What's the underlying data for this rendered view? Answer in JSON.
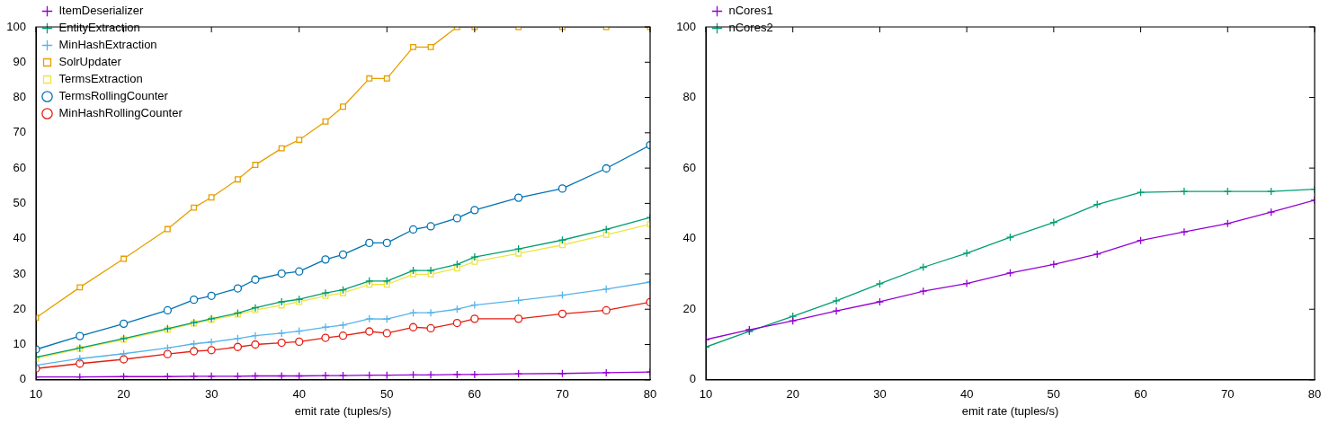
{
  "chart_data": [
    {
      "type": "line",
      "xlabel": "emit rate (tuples/s)",
      "x": [
        10,
        15,
        20,
        25,
        28,
        30,
        33,
        35,
        38,
        40,
        43,
        45,
        48,
        50,
        53,
        55,
        58,
        60,
        65,
        70,
        75,
        80
      ],
      "xlim": [
        10,
        80
      ],
      "xticks": [
        10,
        20,
        30,
        40,
        50,
        60,
        70,
        80
      ],
      "ylim": [
        0,
        100
      ],
      "yticks": [
        0,
        10,
        20,
        30,
        40,
        50,
        60,
        70,
        80,
        90,
        100
      ],
      "grid": false,
      "legend": "top left",
      "line_style": "solid",
      "series": [
        {
          "name": "ItemDeserializer",
          "color": "#9400d3",
          "marker": "cross",
          "values": [
            0.8,
            0.8,
            0.9,
            0.9,
            1.0,
            1.0,
            1.0,
            1.1,
            1.1,
            1.1,
            1.2,
            1.2,
            1.3,
            1.3,
            1.4,
            1.4,
            1.5,
            1.5,
            1.7,
            1.8,
            2.0,
            2.2
          ]
        },
        {
          "name": "EntityExtraction",
          "color": "#009e73",
          "marker": "cross",
          "values": [
            6.4,
            9.0,
            11.7,
            14.5,
            16.2,
            17.3,
            18.9,
            20.4,
            22.1,
            22.8,
            24.6,
            25.5,
            28.0,
            28.0,
            31.0,
            31.0,
            32.7,
            34.8,
            37.1,
            39.6,
            42.6,
            46.0
          ]
        },
        {
          "name": "MinHashExtraction",
          "color": "#56b4e9",
          "marker": "cross",
          "values": [
            4.1,
            6.0,
            7.4,
            9.0,
            10.2,
            10.7,
            11.7,
            12.5,
            13.2,
            13.8,
            14.9,
            15.5,
            17.3,
            17.2,
            19.0,
            19.0,
            20.0,
            21.2,
            22.5,
            24.0,
            25.7,
            27.7
          ]
        },
        {
          "name": "SolrUpdater",
          "color": "#e69f00",
          "marker": "square",
          "values": [
            17.6,
            26.2,
            34.3,
            42.7,
            48.8,
            51.7,
            56.8,
            60.9,
            65.6,
            68.0,
            73.2,
            77.4,
            85.4,
            85.4,
            94.3,
            94.3,
            100,
            100,
            100,
            100,
            100,
            100
          ]
        },
        {
          "name": "TermsExtraction",
          "color": "#f0e442",
          "marker": "square",
          "values": [
            6.0,
            8.8,
            11.4,
            14.2,
            16.0,
            17.0,
            18.5,
            19.8,
            21.1,
            22.1,
            23.8,
            24.6,
            27.0,
            27.0,
            29.9,
            29.9,
            31.6,
            33.5,
            35.8,
            38.2,
            41.1,
            44.1
          ]
        },
        {
          "name": "TermsRollingCounter",
          "color": "#0072b2",
          "marker": "circle",
          "values": [
            8.6,
            12.4,
            15.9,
            19.7,
            22.7,
            23.8,
            25.9,
            28.4,
            30.1,
            30.7,
            34.1,
            35.5,
            38.8,
            38.8,
            42.6,
            43.5,
            45.8,
            48.1,
            51.6,
            54.2,
            59.9,
            66.5
          ]
        },
        {
          "name": "MinHashRollingCounter",
          "color": "#e51e10",
          "marker": "circle",
          "values": [
            3.2,
            4.6,
            5.8,
            7.3,
            8.1,
            8.4,
            9.3,
            10.0,
            10.5,
            10.8,
            11.9,
            12.5,
            13.7,
            13.2,
            14.9,
            14.6,
            16.1,
            17.3,
            17.3,
            18.7,
            19.7,
            22.0
          ]
        }
      ]
    },
    {
      "type": "line",
      "xlabel": "emit rate (tuples/s)",
      "x": [
        10,
        15,
        20,
        25,
        30,
        35,
        40,
        45,
        50,
        55,
        60,
        65,
        70,
        75,
        80
      ],
      "xlim": [
        10,
        80
      ],
      "xticks": [
        10,
        20,
        30,
        40,
        50,
        60,
        70,
        80
      ],
      "ylim": [
        0,
        100
      ],
      "yticks": [
        0,
        20,
        40,
        60,
        80,
        100
      ],
      "grid": false,
      "legend": "top left",
      "line_style": "solid",
      "series": [
        {
          "name": "nCores1",
          "color": "#9400d3",
          "marker": "cross",
          "values": [
            11.4,
            14.2,
            16.7,
            19.5,
            22.1,
            25.1,
            27.3,
            30.3,
            32.7,
            35.6,
            39.5,
            41.9,
            44.3,
            47.5,
            50.9
          ]
        },
        {
          "name": "nCores2",
          "color": "#009e73",
          "marker": "cross",
          "values": [
            9.3,
            13.7,
            18.0,
            22.4,
            27.2,
            31.9,
            35.9,
            40.4,
            44.6,
            49.7,
            53.1,
            53.4,
            53.4,
            53.4,
            54.0
          ]
        }
      ]
    }
  ]
}
